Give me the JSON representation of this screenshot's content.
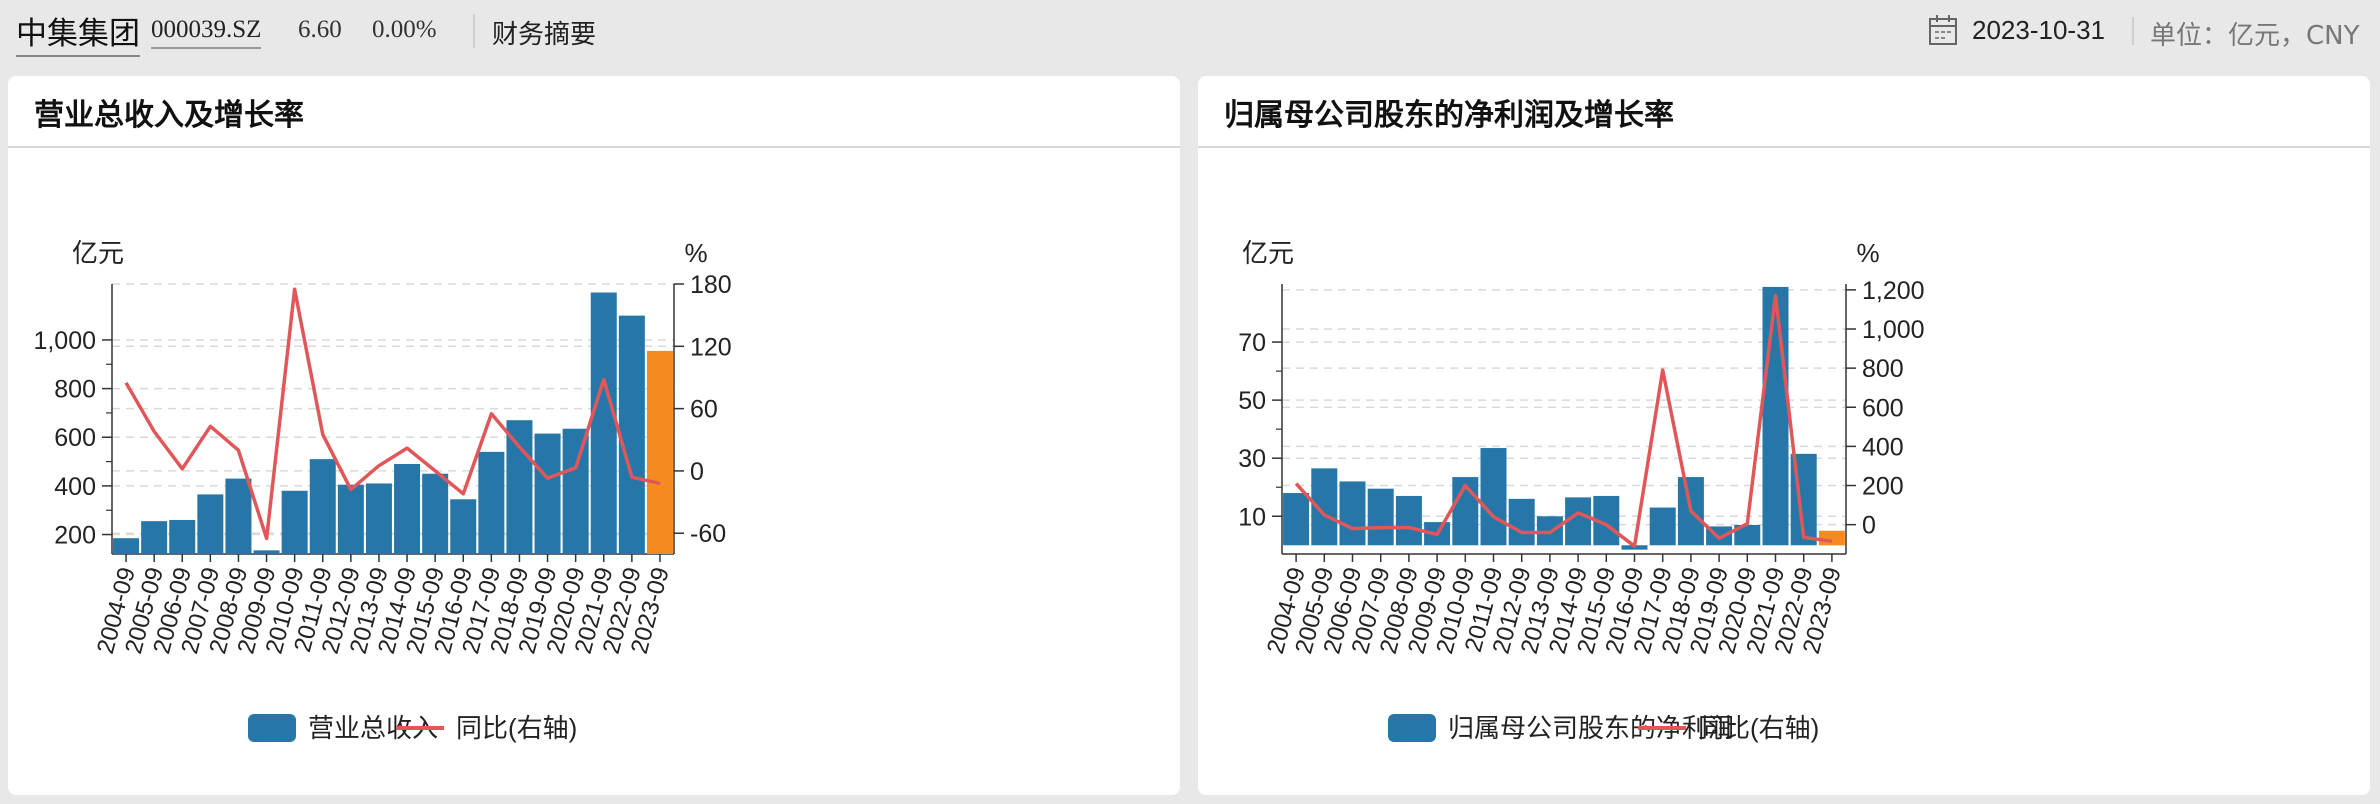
{
  "header": {
    "stock_name": "中集集团",
    "stock_code": "000039.SZ",
    "price": "6.60",
    "change_pct": "0.00%",
    "section": "财务摘要",
    "date": "2023-10-31",
    "unit": "单位：亿元，CNY",
    "calendar_icon": "calendar-icon"
  },
  "panels": [
    {
      "title": "营业总收入及增长率"
    },
    {
      "title": "归属母公司股东的净利润及增长率"
    }
  ],
  "colors": {
    "bar": "#2677a8",
    "bar_highlight": "#f58a1e",
    "line": "#e15759",
    "grid": "#d9d9d9"
  },
  "chart_data": [
    {
      "type": "bar",
      "title": "营业总收入及增长率",
      "ylabel": "亿元",
      "y2label": "%",
      "categories": [
        "2004-09",
        "2005-09",
        "2006-09",
        "2007-09",
        "2008-09",
        "2009-09",
        "2010-09",
        "2011-09",
        "2012-09",
        "2013-09",
        "2014-09",
        "2015-09",
        "2016-09",
        "2017-09",
        "2018-09",
        "2019-09",
        "2020-09",
        "2021-09",
        "2022-09",
        "2023-09"
      ],
      "yticks": [
        200,
        400,
        600,
        800,
        1000
      ],
      "ytick_labels": [
        "200",
        "400",
        "600",
        "800",
        "1,000"
      ],
      "ylim": [
        120,
        1230
      ],
      "y2ticks": [
        -60,
        0,
        60,
        120,
        180
      ],
      "y2tick_labels": [
        "-60",
        "0",
        "60",
        "120",
        "180"
      ],
      "y2lim": [
        -80,
        180
      ],
      "highlight_index": 19,
      "series": [
        {
          "name": "营业总收入",
          "kind": "bar",
          "values": [
            185,
            255,
            260,
            365,
            430,
            135,
            380,
            510,
            405,
            410,
            490,
            450,
            345,
            540,
            670,
            615,
            635,
            1195,
            1100,
            955
          ]
        },
        {
          "name": "同比(右轴)",
          "kind": "line",
          "axis": "right",
          "values": [
            85,
            38,
            2,
            43,
            20,
            -65,
            175,
            35,
            -18,
            5,
            22,
            0,
            -22,
            55,
            23,
            -7,
            3,
            88,
            -6,
            -12
          ]
        }
      ],
      "legend_position": "bottom",
      "grid": true
    },
    {
      "type": "bar",
      "title": "归属母公司股东的净利润及增长率",
      "ylabel": "亿元",
      "y2label": "%",
      "categories": [
        "2004-09",
        "2005-09",
        "2006-09",
        "2007-09",
        "2008-09",
        "2009-09",
        "2010-09",
        "2011-09",
        "2012-09",
        "2013-09",
        "2014-09",
        "2015-09",
        "2016-09",
        "2017-09",
        "2018-09",
        "2019-09",
        "2020-09",
        "2021-09",
        "2022-09",
        "2023-09"
      ],
      "yticks": [
        10,
        30,
        50,
        70
      ],
      "ytick_labels": [
        "10",
        "30",
        "50",
        "70"
      ],
      "ylim": [
        -3,
        90
      ],
      "y2ticks": [
        0,
        200,
        400,
        600,
        800,
        1000,
        1200
      ],
      "y2tick_labels": [
        "0",
        "200",
        "400",
        "600",
        "800",
        "1,000",
        "1,200"
      ],
      "y2lim": [
        -150,
        1230
      ],
      "highlight_index": 19,
      "series": [
        {
          "name": "归属母公司股东的净利润",
          "kind": "bar",
          "values": [
            18,
            26.5,
            22,
            19.5,
            17,
            8,
            23.5,
            33.5,
            16,
            10,
            16.5,
            17,
            -1.5,
            13,
            23.5,
            6.5,
            7,
            89,
            31.5,
            5
          ]
        },
        {
          "name": "同比(右轴)",
          "kind": "line",
          "axis": "right",
          "values": [
            210,
            50,
            -20,
            -15,
            -15,
            -50,
            200,
            40,
            -40,
            -40,
            60,
            0,
            -110,
            790,
            70,
            -70,
            5,
            1170,
            -65,
            -85
          ]
        }
      ],
      "legend_position": "bottom",
      "grid": true
    }
  ]
}
